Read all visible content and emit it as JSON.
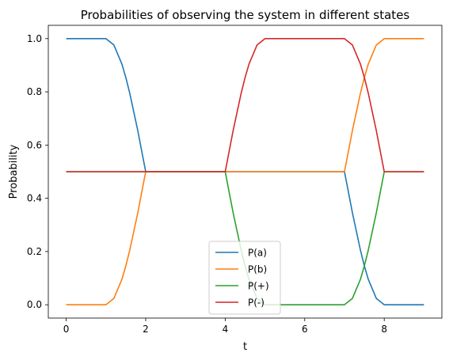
{
  "chart_data": {
    "type": "line",
    "title": "Probabilities of observing the system in different states",
    "xlabel": "t",
    "ylabel": "Probability",
    "xlim": [
      -0.45,
      9.45
    ],
    "ylim": [
      -0.05,
      1.05
    ],
    "xticks": [
      0,
      2,
      4,
      6,
      8
    ],
    "xtick_labels": [
      "0",
      "2",
      "4",
      "6",
      "8"
    ],
    "yticks": [
      0.0,
      0.2,
      0.4,
      0.6,
      0.8,
      1.0
    ],
    "ytick_labels": [
      "0.0",
      "0.2",
      "0.4",
      "0.6",
      "0.8",
      "1.0"
    ],
    "grid": false,
    "legend_position": "bottom-center",
    "series": [
      {
        "name": "P(a)",
        "color": "#1f77b4",
        "x": [
          0,
          1,
          1.2,
          1.4,
          1.5,
          1.6,
          1.8,
          2,
          4,
          7,
          7.2,
          7.4,
          7.5,
          7.6,
          7.8,
          8,
          9
        ],
        "y": [
          1.0,
          1.0,
          0.976,
          0.905,
          0.854,
          0.794,
          0.655,
          0.5,
          0.5,
          0.5,
          0.345,
          0.206,
          0.146,
          0.095,
          0.024,
          0.0,
          0.0
        ]
      },
      {
        "name": "P(b)",
        "color": "#ff7f0e",
        "x": [
          0,
          1,
          1.2,
          1.4,
          1.5,
          1.6,
          1.8,
          2,
          4,
          7,
          7.2,
          7.4,
          7.5,
          7.6,
          7.8,
          8,
          9
        ],
        "y": [
          0.0,
          0.0,
          0.024,
          0.095,
          0.146,
          0.206,
          0.345,
          0.5,
          0.5,
          0.5,
          0.655,
          0.794,
          0.854,
          0.905,
          0.976,
          1.0,
          1.0
        ]
      },
      {
        "name": "P(+)",
        "color": "#2ca02c",
        "x": [
          0,
          2,
          4,
          4.2,
          4.4,
          4.5,
          4.6,
          4.8,
          5,
          7,
          7.2,
          7.4,
          7.5,
          7.6,
          7.8,
          8,
          9
        ],
        "y": [
          0.5,
          0.5,
          0.5,
          0.345,
          0.206,
          0.146,
          0.095,
          0.024,
          0.0,
          0.0,
          0.024,
          0.095,
          0.146,
          0.206,
          0.345,
          0.5,
          0.5
        ]
      },
      {
        "name": "P(-)",
        "color": "#d62728",
        "x": [
          0,
          2,
          4,
          4.2,
          4.4,
          4.5,
          4.6,
          4.8,
          5,
          7,
          7.2,
          7.4,
          7.5,
          7.6,
          7.8,
          8,
          9
        ],
        "y": [
          0.5,
          0.5,
          0.5,
          0.655,
          0.794,
          0.854,
          0.905,
          0.976,
          1.0,
          1.0,
          0.976,
          0.905,
          0.854,
          0.794,
          0.655,
          0.5,
          0.5
        ]
      }
    ]
  }
}
